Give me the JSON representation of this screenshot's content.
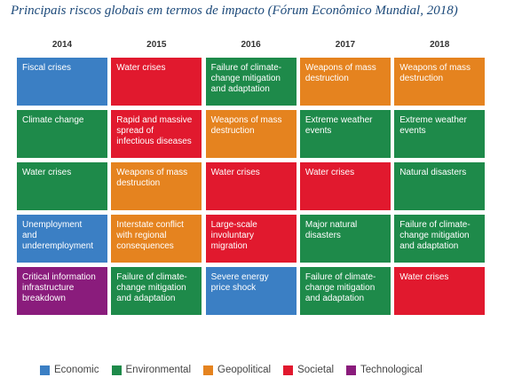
{
  "title": "Principais riscos globais em termos de impacto (Fórum Econômico Mundial, 2018)",
  "legend": [
    {
      "name": "Economic",
      "color": "#3b7fc4"
    },
    {
      "name": "Environmental",
      "color": "#1e8a4a"
    },
    {
      "name": "Geopolitical",
      "color": "#e5831f"
    },
    {
      "name": "Societal",
      "color": "#e1192e"
    },
    {
      "name": "Technological",
      "color": "#8a1c7c"
    }
  ],
  "columns": [
    {
      "year": "2014",
      "cells": [
        {
          "text": "Fiscal crises",
          "category": "Economic"
        },
        {
          "text": "Climate change",
          "category": "Environmental"
        },
        {
          "text": "Water crises",
          "category": "Environmental"
        },
        {
          "text": "Unemployment\nand\nunderemployment",
          "category": "Economic"
        },
        {
          "text": "Critical information\ninfrastructure\nbreakdown",
          "category": "Technological"
        }
      ]
    },
    {
      "year": "2015",
      "cells": [
        {
          "text": "Water crises",
          "category": "Societal"
        },
        {
          "text": "Rapid and massive\nspread of\ninfectious diseases",
          "category": "Societal"
        },
        {
          "text": "Weapons of mass\ndestruction",
          "category": "Geopolitical"
        },
        {
          "text": "Interstate conflict\nwith regional\nconsequences",
          "category": "Geopolitical"
        },
        {
          "text": "Failure of climate-\nchange mitigation\nand adaptation",
          "category": "Environmental"
        }
      ]
    },
    {
      "year": "2016",
      "cells": [
        {
          "text": "Failure of climate-\nchange mitigation\nand adaptation",
          "category": "Environmental"
        },
        {
          "text": "Weapons of mass\ndestruction",
          "category": "Geopolitical"
        },
        {
          "text": "Water crises",
          "category": "Societal"
        },
        {
          "text": "Large-scale\ninvoluntary\nmigration",
          "category": "Societal"
        },
        {
          "text": "Severe energy\nprice shock",
          "category": "Economic"
        }
      ]
    },
    {
      "year": "2017",
      "cells": [
        {
          "text": "Weapons of mass\ndestruction",
          "category": "Geopolitical"
        },
        {
          "text": "Extreme weather\nevents",
          "category": "Environmental"
        },
        {
          "text": "Water crises",
          "category": "Societal"
        },
        {
          "text": "Major natural\ndisasters",
          "category": "Environmental"
        },
        {
          "text": "Failure of climate-\nchange mitigation\nand adaptation",
          "category": "Environmental"
        }
      ]
    },
    {
      "year": "2018",
      "cells": [
        {
          "text": "Weapons of mass\ndestruction",
          "category": "Geopolitical"
        },
        {
          "text": "Extreme weather\nevents",
          "category": "Environmental"
        },
        {
          "text": "Natural disasters",
          "category": "Environmental"
        },
        {
          "text": "Failure of climate-\nchange mitigation\nand adaptation",
          "category": "Environmental"
        },
        {
          "text": "Water crises",
          "category": "Societal"
        }
      ]
    }
  ]
}
